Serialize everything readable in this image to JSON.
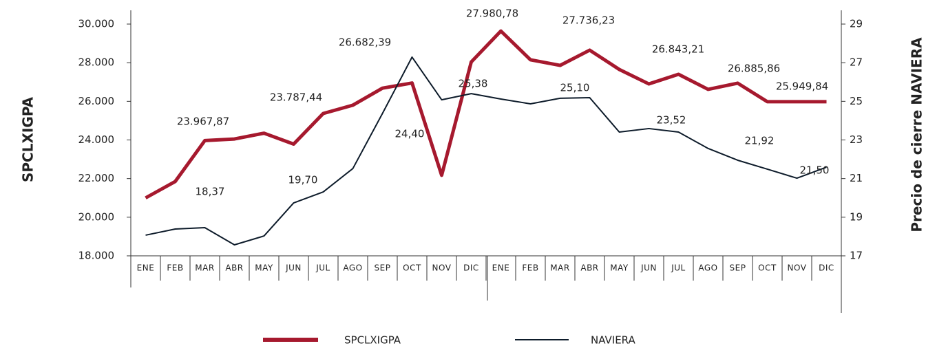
{
  "chart_data": {
    "type": "line",
    "categories": [
      "ENE",
      "FEB",
      "MAR",
      "ABR",
      "MAY",
      "JUN",
      "JUL",
      "AGO",
      "SEP",
      "OCT",
      "NOV",
      "DIC",
      "ENE",
      "FEB",
      "MAR",
      "ABR",
      "MAY",
      "JUN",
      "JUL",
      "AGO",
      "SEP",
      "OCT",
      "NOV",
      "DIC"
    ],
    "ylabel": "SPCLXIGPA",
    "y2label": "Precio de cierre NAVIERA",
    "ylim": [
      18000,
      30000
    ],
    "yticks": [
      {
        "value": 18000,
        "label": "18.000"
      },
      {
        "value": 20000,
        "label": "20.000"
      },
      {
        "value": 22000,
        "label": "22.000"
      },
      {
        "value": 24000,
        "label": "24.000"
      },
      {
        "value": 26000,
        "label": "26.000"
      },
      {
        "value": 28000,
        "label": "28.000"
      },
      {
        "value": 30000,
        "label": "30.000"
      }
    ],
    "y2lim": [
      17,
      29
    ],
    "y2ticks": [
      17,
      19,
      21,
      23,
      25,
      27,
      29
    ],
    "series": [
      {
        "name": "SPCLXIGPA",
        "color": "#a6192e",
        "axis": "y",
        "values": [
          21000,
          21850,
          23967.87,
          24050,
          24350,
          23787.44,
          25370,
          25800,
          26682.39,
          26950,
          22170,
          28040,
          29640,
          28150,
          27860,
          28650,
          27650,
          26900,
          27400,
          26620,
          26940,
          25980,
          25980,
          25980
        ]
      },
      {
        "name": "NAVIERA",
        "color": "#0d1b2a",
        "axis": "y2",
        "values": [
          18.07,
          18.39,
          18.46,
          17.57,
          18.03,
          19.74,
          20.31,
          21.52,
          24.37,
          27.29,
          25.08,
          25.4,
          25.12,
          24.87,
          25.16,
          25.19,
          23.41,
          23.59,
          23.41,
          22.56,
          21.95,
          21.49,
          21.02,
          21.59
        ]
      }
    ],
    "annotations": [
      "23.967,87",
      "23.787,44",
      "26.682,39",
      "27.980,78",
      "27.736,23",
      "26.843,21",
      "26.885,86",
      "25.949,84",
      "18,37",
      "19,70",
      "24,40",
      "25,38",
      "25,10",
      "23,52",
      "21,92",
      "21,50"
    ]
  }
}
